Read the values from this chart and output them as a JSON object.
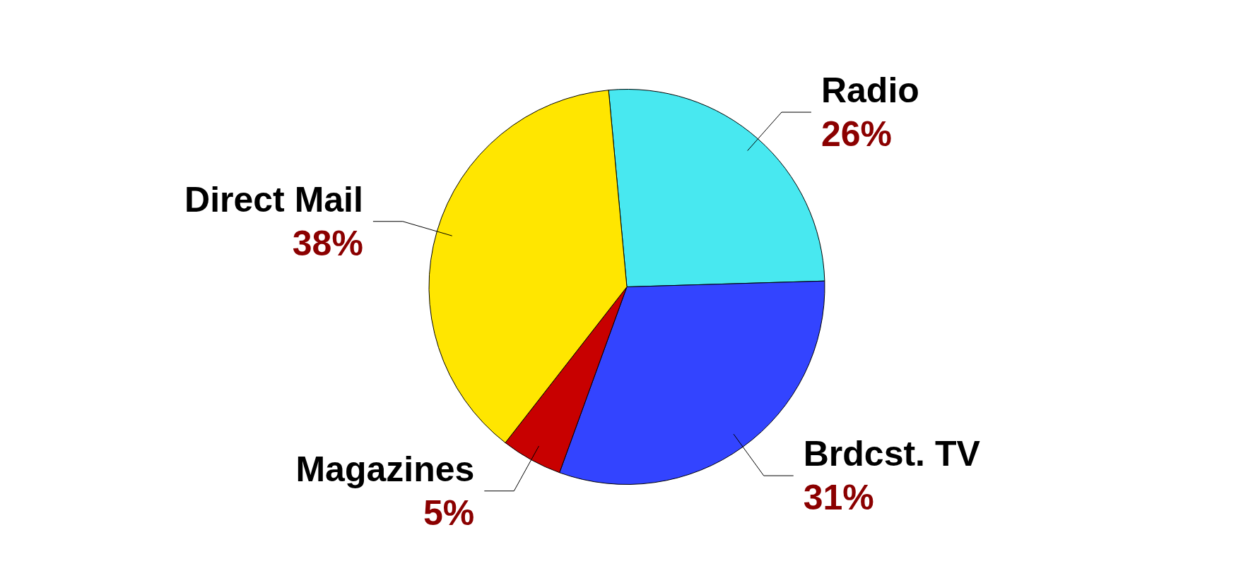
{
  "chart_data": {
    "type": "pie",
    "categories": [
      "Radio",
      "Brdcst. TV",
      "Magazines",
      "Direct Mail"
    ],
    "values": [
      26,
      31,
      5,
      38
    ],
    "colors": [
      "#48e8f0",
      "#3344ff",
      "#c80000",
      "#ffe600"
    ],
    "value_labels": [
      "26%",
      "31%",
      "5%",
      "38%"
    ]
  }
}
